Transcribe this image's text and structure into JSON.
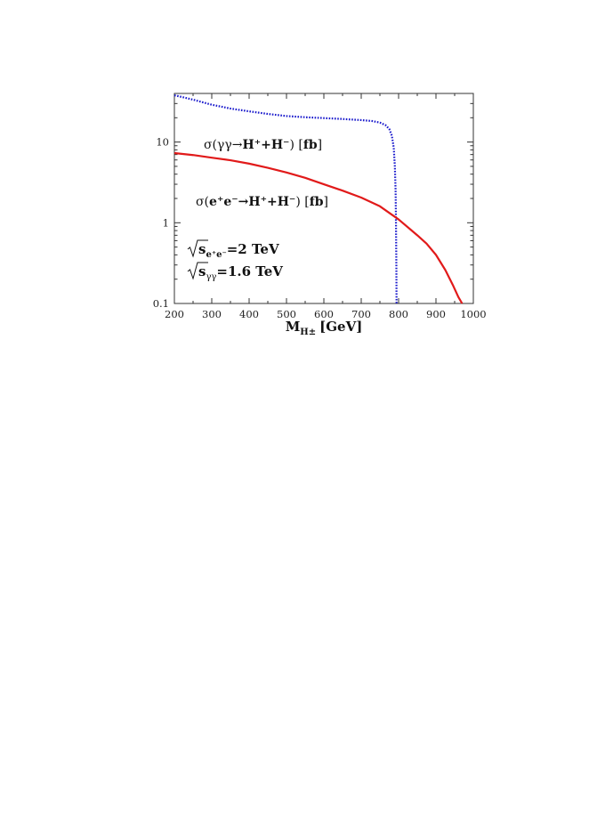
{
  "chart_data": {
    "type": "line",
    "xlabel": "M",
    "xlabel_sub": "H±",
    "xlabel_unit": "[GeV]",
    "ylabel": "",
    "xlim": [
      200,
      1000
    ],
    "ylim": [
      0.1,
      40
    ],
    "yscale": "log",
    "grid": false,
    "x_ticks": [
      "200",
      "300",
      "400",
      "500",
      "600",
      "700",
      "800",
      "900",
      "1000"
    ],
    "y_ticks": [
      "0.1",
      "1",
      "10"
    ],
    "series": [
      {
        "name": "σ(γγ→H⁺+H⁻) [fb]",
        "name_parts": {
          "prefix": "σ(γγ→",
          "bold": "H⁺+H⁻",
          "suffix": ") [",
          "unit": "fb",
          "end": "]"
        },
        "color": "#1a1acc",
        "style": "dotted",
        "x": [
          200,
          250,
          300,
          350,
          400,
          450,
          500,
          550,
          600,
          650,
          700,
          730,
          750,
          765,
          775,
          782,
          787,
          790,
          792,
          793,
          794,
          794.5
        ],
        "y": [
          38,
          33.5,
          29,
          26,
          24,
          22.3,
          21,
          20.3,
          19.8,
          19.3,
          18.7,
          18.2,
          17.4,
          16.2,
          14.5,
          12,
          8.5,
          5,
          2.5,
          1,
          0.3,
          0.1
        ]
      },
      {
        "name": "σ(e⁺e⁻→H⁺+H⁻) [fb]",
        "name_parts": {
          "prefix": "σ(",
          "bold": "e⁺e⁻→H⁺+H⁻",
          "suffix": ") [",
          "unit": "fb",
          "end": "]"
        },
        "color": "#e11a1a",
        "style": "solid",
        "x": [
          200,
          250,
          300,
          350,
          400,
          450,
          500,
          550,
          600,
          650,
          700,
          750,
          800,
          850,
          875,
          900,
          925,
          945,
          960,
          970
        ],
        "y": [
          7.3,
          6.9,
          6.4,
          5.95,
          5.4,
          4.8,
          4.2,
          3.6,
          3.0,
          2.5,
          2.05,
          1.6,
          1.1,
          0.7,
          0.55,
          0.4,
          0.26,
          0.17,
          0.12,
          0.1
        ]
      }
    ],
    "annotations": {
      "see_label": "s",
      "see_sub": "e⁺e⁻",
      "see_value": "=2 TeV",
      "sgg_label": "s",
      "sgg_sub": "γγ",
      "sgg_value": "=1.6 TeV"
    }
  }
}
